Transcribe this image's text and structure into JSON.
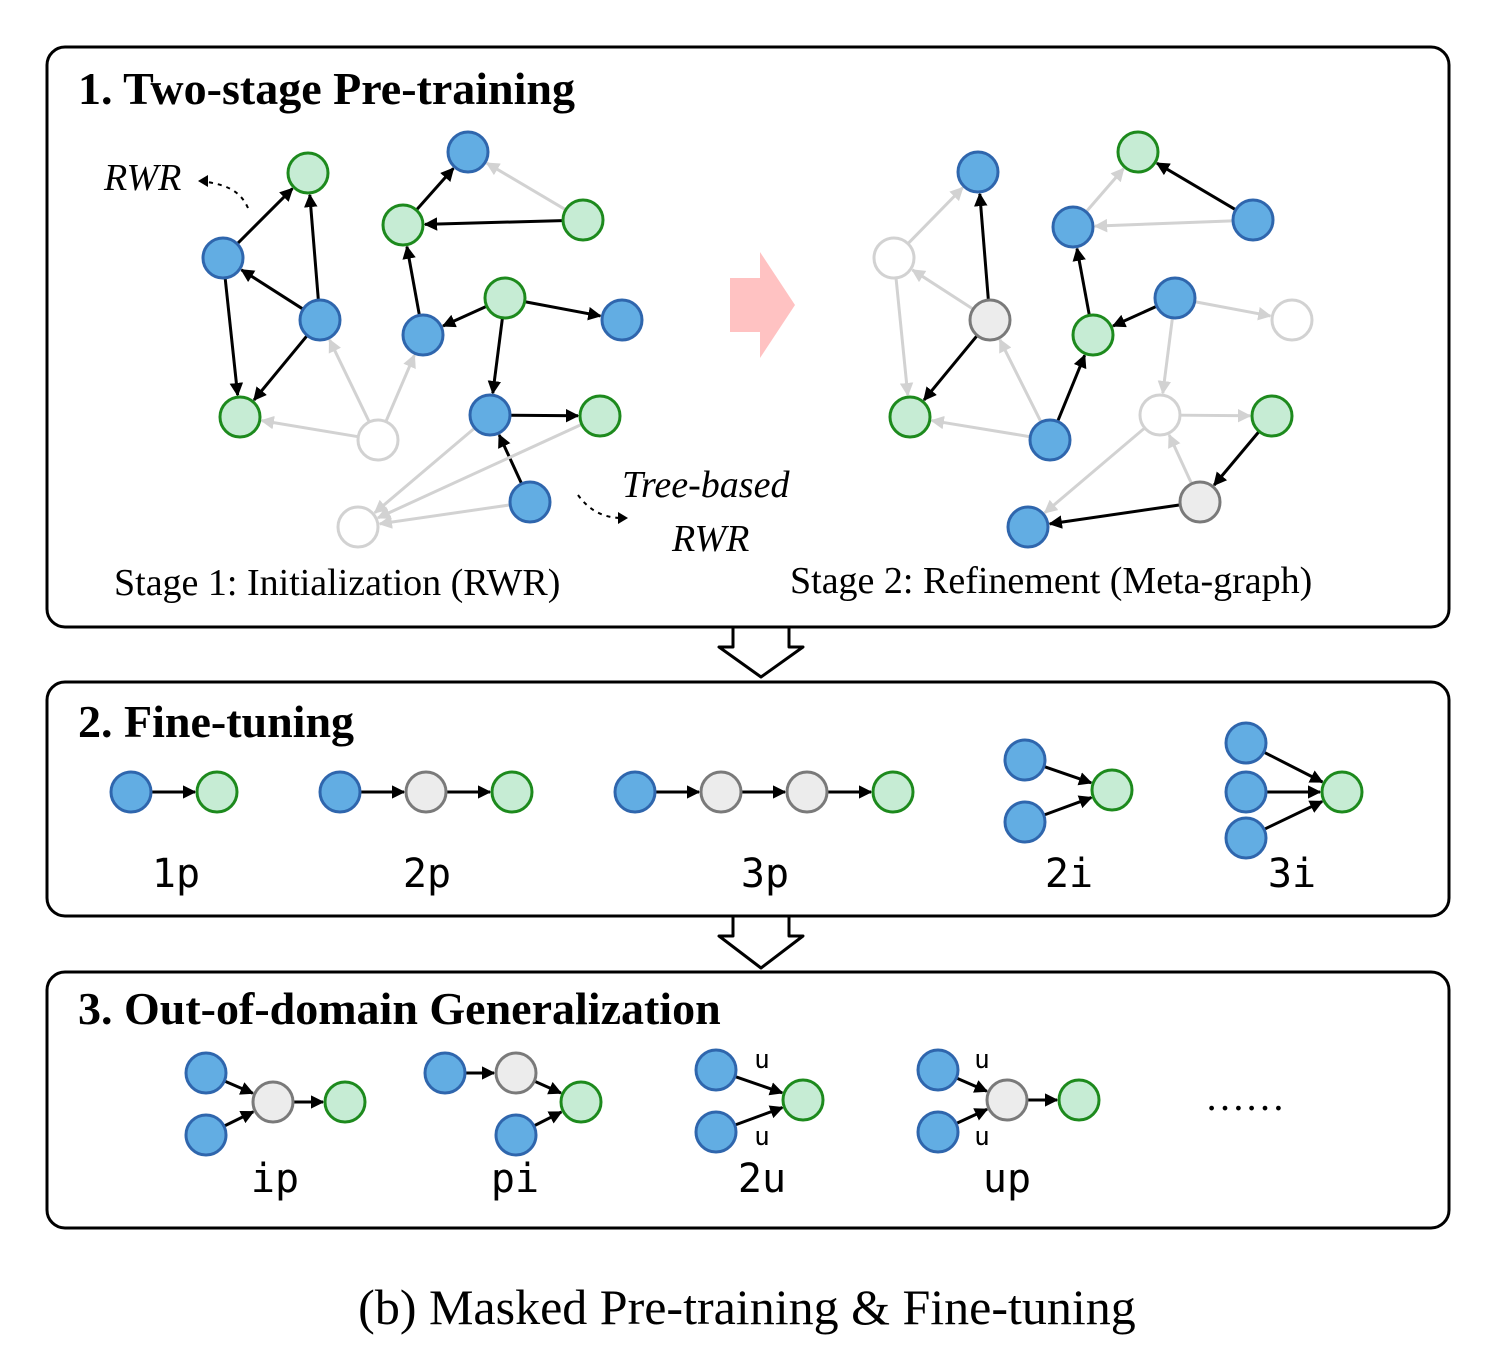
{
  "sections": {
    "pretraining": {
      "title": "1. Two-stage Pre-training",
      "stage1_label": "Stage 1: Initialization (RWR)",
      "stage2_label": "Stage 2: Refinement (Meta-graph)",
      "rwr_label": "RWR",
      "tree_rwr_line1": "Tree-based",
      "tree_rwr_line2": "RWR"
    },
    "finetuning": {
      "title": "2. Fine-tuning",
      "patterns": [
        "1p",
        "2p",
        "3p",
        "2i",
        "3i"
      ]
    },
    "generalization": {
      "title": "3. Out-of-domain Generalization",
      "patterns": [
        "ip",
        "pi",
        "2u",
        "up"
      ],
      "union_marker": "u",
      "ellipsis": "……"
    }
  },
  "caption": "(b) Masked Pre-training & Fine-tuning",
  "colors": {
    "blue_node": "#62ade3",
    "green_node": "#c6ecd4",
    "grey_node": "#ececec",
    "faded_node": "#ffffff",
    "stage_arrow": "#ffc2c2"
  }
}
